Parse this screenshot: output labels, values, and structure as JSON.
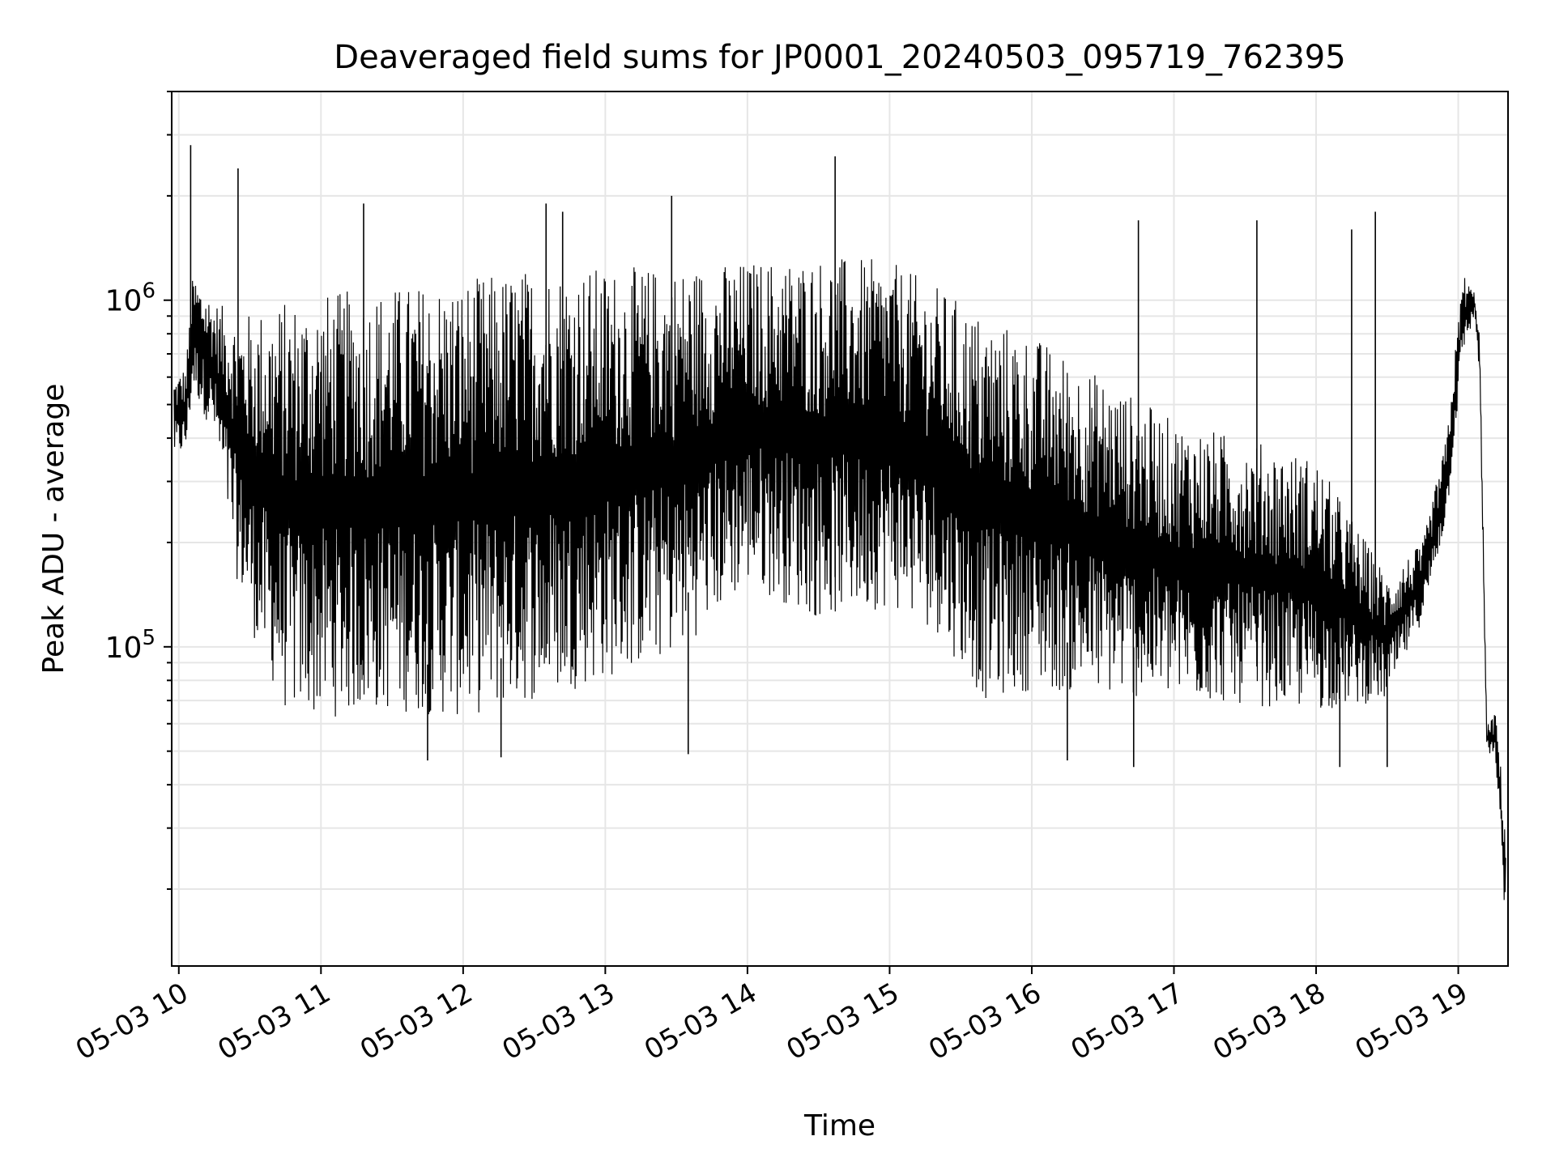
{
  "chart_data": {
    "type": "line",
    "title": "Deaveraged field sums for JP0001_20240503_095719_762395",
    "xlabel": "Time",
    "ylabel": "Peak ADU - average",
    "x_axis": {
      "type": "time",
      "range": [
        "2024-05-03T09:57",
        "2024-05-03T19:21"
      ],
      "ticks": [
        {
          "t": "2024-05-03T10:00",
          "label": "05-03 10"
        },
        {
          "t": "2024-05-03T11:00",
          "label": "05-03 11"
        },
        {
          "t": "2024-05-03T12:00",
          "label": "05-03 12"
        },
        {
          "t": "2024-05-03T13:00",
          "label": "05-03 13"
        },
        {
          "t": "2024-05-03T14:00",
          "label": "05-03 14"
        },
        {
          "t": "2024-05-03T15:00",
          "label": "05-03 15"
        },
        {
          "t": "2024-05-03T16:00",
          "label": "05-03 16"
        },
        {
          "t": "2024-05-03T17:00",
          "label": "05-03 17"
        },
        {
          "t": "2024-05-03T18:00",
          "label": "05-03 18"
        },
        {
          "t": "2024-05-03T19:00",
          "label": "05-03 19"
        }
      ]
    },
    "y_axis": {
      "scale": "log",
      "range": [
        12000,
        4000000
      ],
      "major_ticks": [
        {
          "value": 100000,
          "base": "10",
          "exp": "5"
        },
        {
          "value": 1000000,
          "base": "10",
          "exp": "6"
        }
      ]
    },
    "grid": true,
    "line_color": "#000000",
    "grid_color": "#e6e6e6",
    "series": [
      {
        "envelope": [
          {
            "t": "2024-05-03T09:58",
            "lo": 350000,
            "hi": 600000
          },
          {
            "t": "2024-05-03T10:03",
            "lo": 360000,
            "hi": 650000
          },
          {
            "t": "2024-05-03T10:06",
            "lo": 550000,
            "hi": 1200000
          },
          {
            "t": "2024-05-03T10:15",
            "lo": 400000,
            "hi": 1000000
          },
          {
            "t": "2024-05-03T10:25",
            "lo": 150000,
            "hi": 900000
          },
          {
            "t": "2024-05-03T10:35",
            "lo": 90000,
            "hi": 950000
          },
          {
            "t": "2024-05-03T10:45",
            "lo": 65000,
            "hi": 1000000
          },
          {
            "t": "2024-05-03T11:00",
            "lo": 62000,
            "hi": 1050000
          },
          {
            "t": "2024-05-03T11:30",
            "lo": 65000,
            "hi": 1100000
          },
          {
            "t": "2024-05-03T12:00",
            "lo": 62000,
            "hi": 1150000
          },
          {
            "t": "2024-05-03T12:30",
            "lo": 70000,
            "hi": 1250000
          },
          {
            "t": "2024-05-03T13:00",
            "lo": 80000,
            "hi": 1250000
          },
          {
            "t": "2024-05-03T13:30",
            "lo": 95000,
            "hi": 1250000
          },
          {
            "t": "2024-05-03T14:00",
            "lo": 150000,
            "hi": 1300000
          },
          {
            "t": "2024-05-03T14:30",
            "lo": 120000,
            "hi": 1350000
          },
          {
            "t": "2024-05-03T15:00",
            "lo": 130000,
            "hi": 1300000
          },
          {
            "t": "2024-05-03T15:20",
            "lo": 110000,
            "hi": 1100000
          },
          {
            "t": "2024-05-03T15:40",
            "lo": 70000,
            "hi": 900000
          },
          {
            "t": "2024-05-03T16:00",
            "lo": 75000,
            "hi": 800000
          },
          {
            "t": "2024-05-03T16:30",
            "lo": 72000,
            "hi": 600000
          },
          {
            "t": "2024-05-03T17:00",
            "lo": 70000,
            "hi": 450000
          },
          {
            "t": "2024-05-03T17:30",
            "lo": 68000,
            "hi": 400000
          },
          {
            "t": "2024-05-03T18:00",
            "lo": 65000,
            "hi": 350000
          },
          {
            "t": "2024-05-03T18:30",
            "lo": 70000,
            "hi": 160000
          },
          {
            "t": "2024-05-03T18:45",
            "lo": 120000,
            "hi": 200000
          },
          {
            "t": "2024-05-03T18:55",
            "lo": 230000,
            "hi": 400000
          },
          {
            "t": "2024-05-03T19:02",
            "lo": 700000,
            "hi": 1200000
          },
          {
            "t": "2024-05-03T19:07",
            "lo": 900000,
            "hi": 1050000
          },
          {
            "t": "2024-05-03T19:09",
            "lo": 600000,
            "hi": 800000
          },
          {
            "t": "2024-05-03T19:12",
            "lo": 50000,
            "hi": 60000
          },
          {
            "t": "2024-05-03T19:16",
            "lo": 45000,
            "hi": 65000
          },
          {
            "t": "2024-05-03T19:20",
            "lo": 15000,
            "hi": 30000
          }
        ],
        "spikes": [
          {
            "t": "2024-05-03T10:05",
            "value": 2800000
          },
          {
            "t": "2024-05-03T10:25",
            "value": 2400000
          },
          {
            "t": "2024-05-03T11:18",
            "value": 1900000
          },
          {
            "t": "2024-05-03T12:35",
            "value": 1900000
          },
          {
            "t": "2024-05-03T12:42",
            "value": 1800000
          },
          {
            "t": "2024-05-03T13:28",
            "value": 2000000
          },
          {
            "t": "2024-05-03T14:37",
            "value": 2600000
          },
          {
            "t": "2024-05-03T16:45",
            "value": 1700000
          },
          {
            "t": "2024-05-03T17:35",
            "value": 1700000
          },
          {
            "t": "2024-05-03T18:15",
            "value": 1600000
          },
          {
            "t": "2024-05-03T18:25",
            "value": 1800000
          }
        ],
        "dips": [
          {
            "t": "2024-05-03T11:45",
            "value": 47000
          },
          {
            "t": "2024-05-03T12:16",
            "value": 48000
          },
          {
            "t": "2024-05-03T13:35",
            "value": 49000
          },
          {
            "t": "2024-05-03T16:15",
            "value": 47000
          },
          {
            "t": "2024-05-03T16:43",
            "value": 45000
          },
          {
            "t": "2024-05-03T18:10",
            "value": 45000
          },
          {
            "t": "2024-05-03T18:30",
            "value": 45000
          }
        ]
      }
    ]
  }
}
